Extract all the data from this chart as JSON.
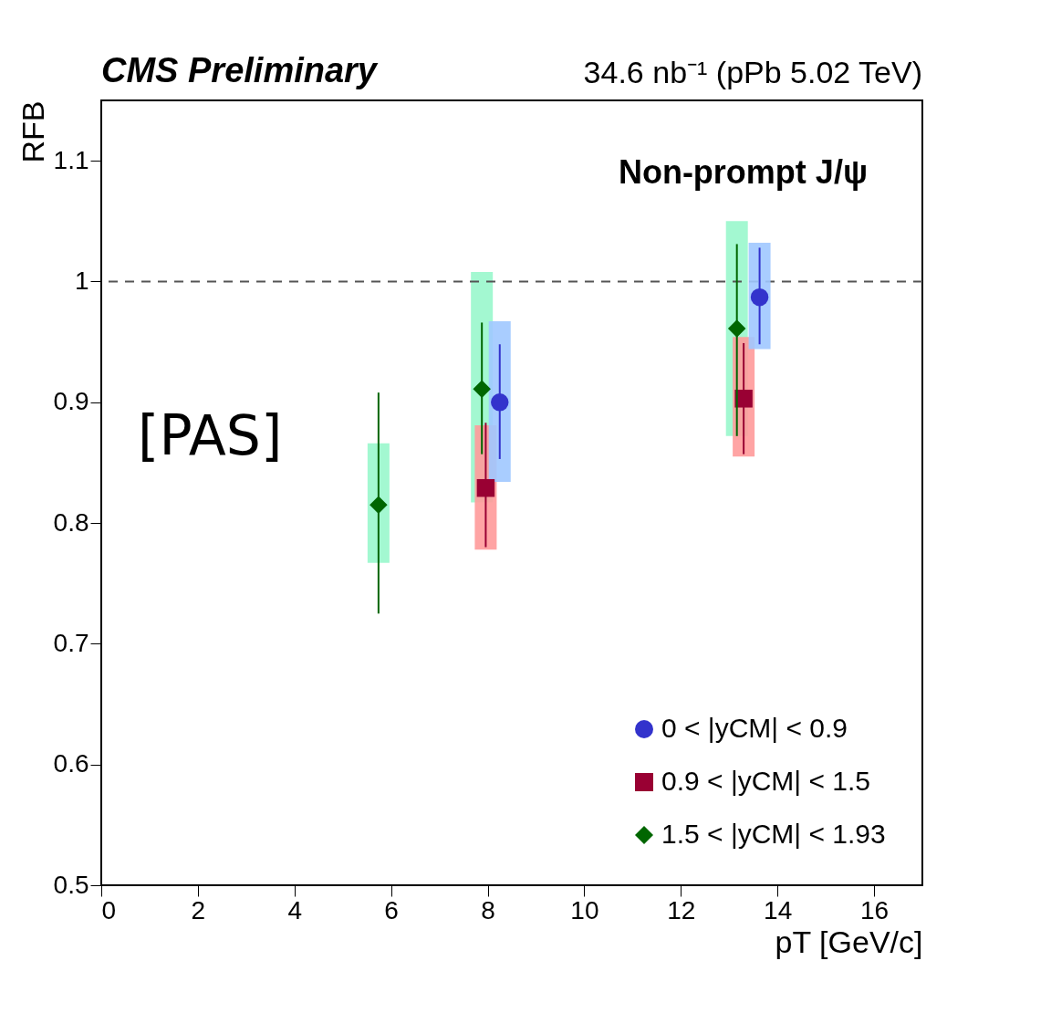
{
  "chart_data": {
    "type": "scatter",
    "title": "CMS Preliminary",
    "subtitle": "34.6 nb⁻¹ (pPb 5.02 TeV)",
    "xlabel": "pT [GeV/c]",
    "ylabel": "RFB",
    "annotations": [
      "Non-prompt J/ψ",
      "[PAS]"
    ],
    "xlim": [
      0,
      17
    ],
    "xticks": [
      0,
      2,
      4,
      6,
      8,
      10,
      12,
      14,
      16
    ],
    "ylim": [
      0.5,
      1.15
    ],
    "yticks": [
      0.5,
      0.6,
      0.7,
      0.8,
      0.9,
      1,
      1.1
    ],
    "grid": false,
    "legend": "bottom right",
    "ref_lines": [
      {
        "axis": "y",
        "value": 1,
        "line_style": "dashed",
        "color": "#555555"
      }
    ],
    "series": [
      {
        "type": "bar",
        "color": "#a0c8ff",
        "x": [
          8.25,
          13.63
        ],
        "base": [
          0.834,
          0.944
        ],
        "values": [
          0.133,
          0.088
        ]
      },
      {
        "type": "bar",
        "color": "#ff9a9a",
        "x": [
          7.96,
          13.3
        ],
        "base": [
          0.778,
          0.855
        ],
        "values": [
          0.103,
          0.099
        ]
      },
      {
        "type": "bar",
        "color": "#99f7cc",
        "x": [
          5.74,
          7.88,
          13.16
        ],
        "base": [
          0.767,
          0.817,
          0.872
        ],
        "values": [
          0.099,
          0.191,
          0.178
        ]
      },
      {
        "name": "0 < |yCM| < 0.9",
        "color": "#3333cc",
        "marker": "circle",
        "x": [
          8.25,
          13.63
        ],
        "values": [
          0.9,
          0.987
        ],
        "errors": [
          [
            0.853,
            0.948
          ],
          [
            0.948,
            1.028
          ]
        ]
      },
      {
        "name": "0.9 < |yCM| < 1.5",
        "color": "#990033",
        "marker": "square",
        "x": [
          7.96,
          13.3
        ],
        "values": [
          0.829,
          0.903
        ],
        "errors": [
          [
            0.78,
            0.883
          ],
          [
            0.857,
            0.949
          ]
        ]
      },
      {
        "name": "1.5 < |yCM| < 1.93",
        "color": "#006600",
        "marker": "diamond",
        "x": [
          5.74,
          7.88,
          13.16
        ],
        "values": [
          0.815,
          0.911,
          0.961
        ],
        "errors": [
          [
            0.725,
            0.908
          ],
          [
            0.857,
            0.966
          ],
          [
            0.872,
            1.031
          ]
        ]
      }
    ]
  }
}
